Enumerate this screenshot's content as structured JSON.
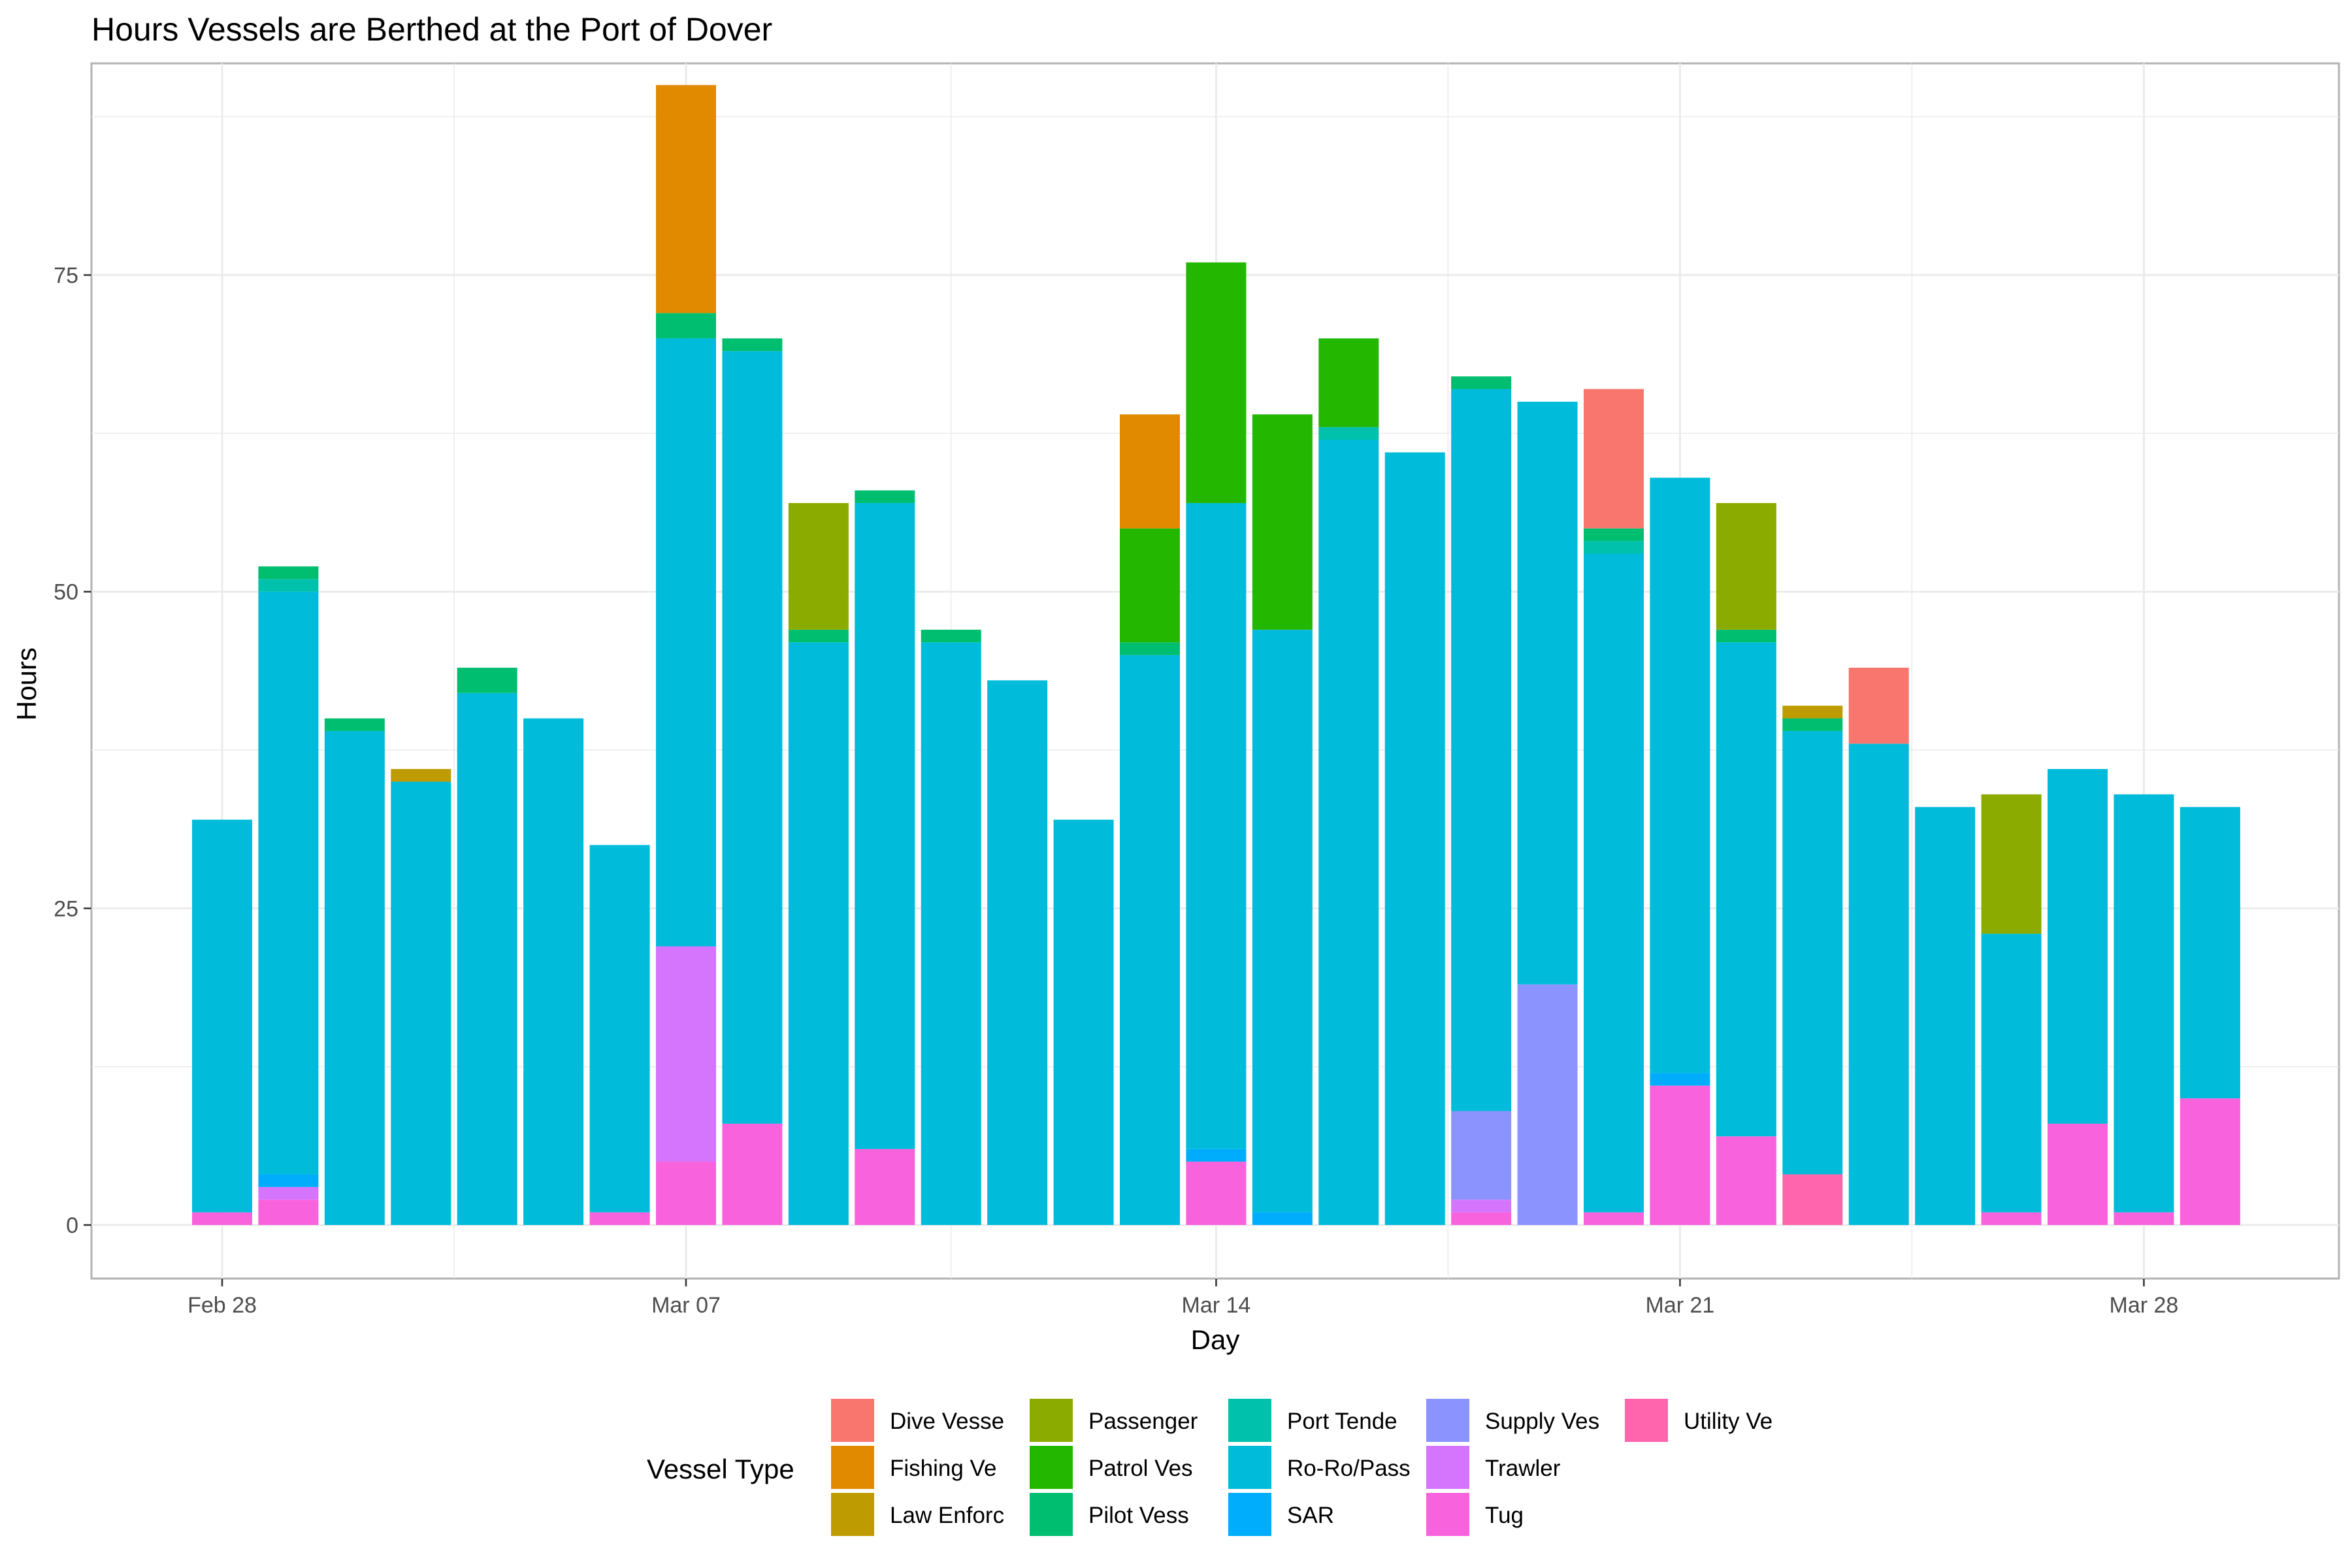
{
  "chart_data": {
    "type": "bar",
    "stacked": true,
    "title": "Hours Vessels are Berthed at the Port of Dover",
    "xlabel": "Day",
    "ylabel": "Hours",
    "ylim": [
      0,
      90
    ],
    "yticks": [
      0,
      25,
      50,
      75
    ],
    "xticks": [
      {
        "label": "Feb 28",
        "day_index": 0
      },
      {
        "label": "Mar 07",
        "day_index": 7
      },
      {
        "label": "Mar 14",
        "day_index": 15
      },
      {
        "label": "Mar 21",
        "day_index": 22
      },
      {
        "label": "Mar 28",
        "day_index": 29
      }
    ],
    "grid": true,
    "legend": {
      "title": "Vessel Type",
      "placement": "bottom",
      "entries": [
        {
          "name": "Dive Vesse",
          "color": "#F8766D"
        },
        {
          "name": "Fishing Ve",
          "color": "#E18A00"
        },
        {
          "name": "Law Enforc",
          "color": "#BE9C00"
        },
        {
          "name": "Passenger",
          "color": "#8CAB00"
        },
        {
          "name": "Patrol Ves",
          "color": "#24B700"
        },
        {
          "name": "Pilot Vess",
          "color": "#00BE70"
        },
        {
          "name": "Port Tende",
          "color": "#00C1AB"
        },
        {
          "name": "Ro-Ro/Pass",
          "color": "#00BBDA"
        },
        {
          "name": "SAR",
          "color": "#00ACFC"
        },
        {
          "name": "Supply Ves",
          "color": "#8B93FF"
        },
        {
          "name": "Trawler",
          "color": "#D575FE"
        },
        {
          "name": "Tug",
          "color": "#F962DD"
        },
        {
          "name": "Utility Ve",
          "color": "#FF65AC"
        }
      ]
    },
    "stack_order_bottom_to_top": [
      "Utility Ve",
      "Tug",
      "Trawler",
      "Supply Ves",
      "SAR",
      "Ro-Ro/Pass",
      "Port Tende",
      "Pilot Vess",
      "Patrol Ves",
      "Passenger",
      "Law Enforc",
      "Fishing Ve",
      "Dive Vesse"
    ],
    "categories": [
      "Feb 28",
      "Feb 29",
      "Mar 01",
      "Mar 02",
      "Mar 03",
      "Mar 04",
      "Mar 05",
      "Mar 07",
      "Mar 08",
      "Mar 09",
      "Mar 10",
      "Mar 11",
      "Mar 12",
      "Mar 13",
      "Mar 14",
      "Mar 15",
      "Mar 16",
      "Mar 17",
      "Mar 18",
      "Mar 19",
      "Mar 20",
      "Mar 21",
      "Mar 22",
      "Mar 23",
      "Mar 24",
      "Mar 25",
      "Mar 26",
      "Mar 27",
      "Mar 28",
      "Mar 29",
      "Mar 30"
    ],
    "day_index": [
      0,
      1,
      2,
      3,
      4,
      5,
      6,
      7,
      8,
      9,
      10,
      11,
      12,
      13,
      14,
      15,
      16,
      17,
      18,
      19,
      20,
      21,
      22,
      23,
      24,
      25,
      26,
      27,
      28,
      29,
      30
    ],
    "series": [
      {
        "name": "Utility Ve",
        "values": [
          0,
          0,
          0,
          0,
          0,
          0,
          0,
          0,
          0,
          0,
          0,
          0,
          0,
          0,
          0,
          0,
          0,
          0,
          0,
          0,
          0,
          0,
          0,
          0,
          4,
          0,
          0,
          0,
          0,
          0,
          0
        ]
      },
      {
        "name": "Tug",
        "values": [
          1,
          2,
          0,
          0,
          0,
          0,
          1,
          5,
          8,
          0,
          6,
          0,
          0,
          0,
          0,
          5,
          0,
          0,
          0,
          1,
          0,
          1,
          11,
          7,
          0,
          0,
          0,
          1,
          8,
          1,
          10
        ]
      },
      {
        "name": "Trawler",
        "values": [
          0,
          1,
          0,
          0,
          0,
          0,
          0,
          17,
          0,
          0,
          0,
          0,
          0,
          0,
          0,
          0,
          0,
          0,
          0,
          1,
          0,
          0,
          0,
          0,
          0,
          0,
          0,
          0,
          0,
          0,
          0
        ]
      },
      {
        "name": "Supply Ves",
        "values": [
          0,
          0,
          0,
          0,
          0,
          0,
          0,
          0,
          0,
          0,
          0,
          0,
          0,
          0,
          0,
          0,
          0,
          0,
          0,
          7,
          19,
          0,
          0,
          0,
          0,
          0,
          0,
          0,
          0,
          0,
          0
        ]
      },
      {
        "name": "SAR",
        "values": [
          0,
          1,
          0,
          0,
          0,
          0,
          0,
          0,
          0,
          0,
          0,
          0,
          0,
          0,
          0,
          1,
          1,
          0,
          0,
          0,
          0,
          0,
          1,
          0,
          0,
          0,
          0,
          0,
          0,
          0,
          0
        ]
      },
      {
        "name": "Ro-Ro/Pass",
        "values": [
          31,
          46,
          39,
          35,
          42,
          40,
          29,
          48,
          61,
          46,
          51,
          46,
          43,
          32,
          45,
          51,
          46,
          62,
          61,
          57,
          46,
          52,
          47,
          39,
          35,
          38,
          33,
          22,
          28,
          33,
          23
        ]
      },
      {
        "name": "Port Tende",
        "values": [
          0,
          1,
          0,
          0,
          0,
          0,
          0,
          0,
          0,
          0,
          0,
          0,
          0,
          0,
          0,
          0,
          0,
          1,
          0,
          0,
          0,
          1,
          0,
          0,
          0,
          0,
          0,
          0,
          0,
          0,
          0
        ]
      },
      {
        "name": "Pilot Vess",
        "values": [
          0,
          1,
          1,
          0,
          2,
          0,
          0,
          2,
          1,
          1,
          1,
          1,
          0,
          0,
          1,
          0,
          0,
          0,
          0,
          1,
          0,
          1,
          0,
          1,
          1,
          0,
          0,
          0,
          0,
          0,
          0
        ]
      },
      {
        "name": "Patrol Ves",
        "values": [
          0,
          0,
          0,
          0,
          0,
          0,
          0,
          0,
          0,
          0,
          0,
          0,
          0,
          0,
          9,
          19,
          17,
          7,
          0,
          0,
          0,
          0,
          0,
          0,
          0,
          0,
          0,
          0,
          0,
          0,
          0
        ]
      },
      {
        "name": "Passenger",
        "values": [
          0,
          0,
          0,
          0,
          0,
          0,
          0,
          0,
          0,
          10,
          0,
          0,
          0,
          0,
          0,
          0,
          0,
          0,
          0,
          0,
          0,
          0,
          0,
          10,
          0,
          0,
          0,
          11,
          0,
          0,
          0
        ]
      },
      {
        "name": "Law Enforc",
        "values": [
          0,
          0,
          0,
          1,
          0,
          0,
          0,
          0,
          0,
          0,
          0,
          0,
          0,
          0,
          0,
          0,
          0,
          0,
          0,
          0,
          0,
          0,
          0,
          0,
          1,
          0,
          0,
          0,
          0,
          0,
          0
        ]
      },
      {
        "name": "Fishing Ve",
        "values": [
          0,
          0,
          0,
          0,
          0,
          0,
          0,
          18,
          0,
          0,
          0,
          0,
          0,
          0,
          9,
          0,
          0,
          0,
          0,
          0,
          0,
          0,
          0,
          0,
          0,
          0,
          0,
          0,
          0,
          0,
          0
        ]
      },
      {
        "name": "Dive Vesse",
        "values": [
          0,
          0,
          0,
          0,
          0,
          0,
          0,
          0,
          0,
          0,
          0,
          0,
          0,
          0,
          0,
          0,
          0,
          0,
          0,
          0,
          0,
          11,
          0,
          0,
          0,
          6,
          0,
          0,
          0,
          0,
          0
        ]
      }
    ]
  }
}
